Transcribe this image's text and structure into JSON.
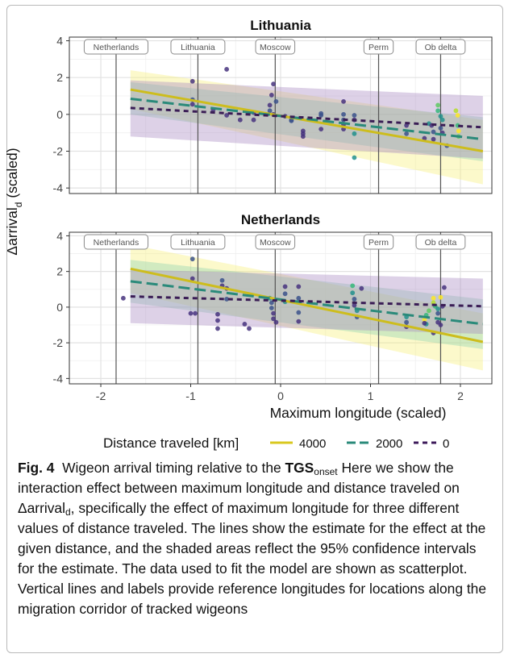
{
  "figure": {
    "panels": [
      {
        "title": "Lithuania"
      },
      {
        "title": "Netherlands"
      }
    ],
    "ylabel_main": "Δarrival",
    "ylabel_sub": "d",
    "ylabel_suffix": " (scaled)",
    "xlabel": "Maximum longitude (scaled)",
    "legend": {
      "title": "Distance traveled [km]",
      "entries": [
        {
          "label": "4000",
          "color": "#d9c81f",
          "dash": "solid"
        },
        {
          "label": "2000",
          "color": "#2a8a7a",
          "dash": "long"
        },
        {
          "label": "0",
          "color": "#3d1a5a",
          "dash": "short"
        }
      ]
    }
  },
  "caption": {
    "fig_label": "Fig. 4",
    "part1": "Wigeon arrival timing relative to the ",
    "tgs": "TGS",
    "tgs_sub": "onset",
    "part2": " Here we show the interaction effect between maximum longitude and distance traveled on Δarrival",
    "arr_sub": "d",
    "part3": ", specifically the effect of maximum longitude for three different values of distance traveled. The lines show the estimate for the effect at the given distance, and the shaded areas reflect the 95% confidence intervals for the estimate. The data used to fit the model are shown as scatterplot. Vertical lines and labels provide reference longitudes for locations along the migration corridor of tracked wigeons"
  },
  "chart_data": [
    {
      "type": "line",
      "title": "Lithuania",
      "xlabel": "Maximum longitude (scaled)",
      "ylabel": "Δarrival_d (scaled)",
      "xlim": [
        -2.35,
        2.35
      ],
      "ylim": [
        -4.3,
        4.2
      ],
      "xticks": [
        -2,
        -1,
        0,
        1,
        2
      ],
      "yticks": [
        -4,
        -2,
        0,
        2,
        4
      ],
      "reference_lines": [
        {
          "label": "Netherlands",
          "x": -1.83
        },
        {
          "label": "Lithuania",
          "x": -0.92
        },
        {
          "label": "Moscow",
          "x": -0.06
        },
        {
          "label": "Perm",
          "x": 1.09
        },
        {
          "label": "Ob delta",
          "x": 1.78
        }
      ],
      "series": [
        {
          "name": "4000",
          "x": [
            -1.67,
            2.25
          ],
          "y": [
            1.35,
            -2.0
          ],
          "ci_low": [
            0.3,
            -3.8
          ],
          "ci_high": [
            2.4,
            -0.3
          ]
        },
        {
          "name": "2000",
          "x": [
            -1.67,
            2.25
          ],
          "y": [
            0.85,
            -1.35
          ],
          "ci_low": [
            0.0,
            -2.55
          ],
          "ci_high": [
            1.75,
            -0.15
          ]
        },
        {
          "name": "0",
          "x": [
            -1.67,
            2.25
          ],
          "y": [
            0.35,
            -0.7
          ],
          "ci_low": [
            -1.2,
            -2.4
          ],
          "ci_high": [
            1.85,
            1.0
          ]
        }
      ],
      "points": [
        {
          "x": -0.98,
          "y": 1.8,
          "c": "#46327e"
        },
        {
          "x": -0.98,
          "y": 0.8,
          "c": "#3b528b"
        },
        {
          "x": -0.98,
          "y": 0.55,
          "c": "#46327e"
        },
        {
          "x": -0.6,
          "y": 2.45,
          "c": "#46327e"
        },
        {
          "x": -0.75,
          "y": 0.25,
          "c": "#46327e"
        },
        {
          "x": -0.6,
          "y": -0.05,
          "c": "#46327e"
        },
        {
          "x": -0.45,
          "y": -0.3,
          "c": "#46327e"
        },
        {
          "x": -0.3,
          "y": 0.1,
          "c": "#46327e"
        },
        {
          "x": -0.3,
          "y": -0.3,
          "c": "#46327e"
        },
        {
          "x": -0.12,
          "y": 0.5,
          "c": "#46327e"
        },
        {
          "x": -0.12,
          "y": 0.2,
          "c": "#3b528b"
        },
        {
          "x": -0.1,
          "y": 1.05,
          "c": "#46327e"
        },
        {
          "x": -0.08,
          "y": 0.0,
          "c": "#46327e"
        },
        {
          "x": -0.08,
          "y": 1.65,
          "c": "#46327e"
        },
        {
          "x": 0.05,
          "y": -0.1,
          "c": "#46327e"
        },
        {
          "x": 0.12,
          "y": -0.3,
          "c": "#3b528b"
        },
        {
          "x": 0.12,
          "y": -0.35,
          "c": "#3b528b"
        },
        {
          "x": -0.05,
          "y": 0.7,
          "c": "#3b528b"
        },
        {
          "x": 0.25,
          "y": -0.9,
          "c": "#46327e"
        },
        {
          "x": 0.25,
          "y": -1.05,
          "c": "#46327e"
        },
        {
          "x": 0.25,
          "y": -1.2,
          "c": "#46327e"
        },
        {
          "x": 0.45,
          "y": -0.8,
          "c": "#46327e"
        },
        {
          "x": 0.45,
          "y": -0.05,
          "c": "#3b528b"
        },
        {
          "x": 0.45,
          "y": 0.05,
          "c": "#3b528b"
        },
        {
          "x": 0.7,
          "y": 0.0,
          "c": "#3b528b"
        },
        {
          "x": 0.7,
          "y": -0.3,
          "c": "#3b528b"
        },
        {
          "x": 0.7,
          "y": -0.55,
          "c": "#46327e"
        },
        {
          "x": 0.7,
          "y": -0.8,
          "c": "#46327e"
        },
        {
          "x": 0.7,
          "y": 0.7,
          "c": "#46327e"
        },
        {
          "x": 0.82,
          "y": -1.05,
          "c": "#21918c"
        },
        {
          "x": 0.82,
          "y": -0.3,
          "c": "#46327e"
        },
        {
          "x": 0.82,
          "y": -2.35,
          "c": "#21918c"
        },
        {
          "x": 0.82,
          "y": -0.05,
          "c": "#3b528b"
        },
        {
          "x": 1.4,
          "y": -0.6,
          "c": "#46327e"
        },
        {
          "x": 1.4,
          "y": -1.05,
          "c": "#3b528b"
        },
        {
          "x": 1.65,
          "y": -0.5,
          "c": "#21918c"
        },
        {
          "x": 1.68,
          "y": -0.6,
          "c": "#46327e"
        },
        {
          "x": 1.7,
          "y": -0.95,
          "c": "#3b528b"
        },
        {
          "x": 1.7,
          "y": -1.35,
          "c": "#46327e"
        },
        {
          "x": 1.75,
          "y": 0.5,
          "c": "#5ec962"
        },
        {
          "x": 1.75,
          "y": 0.2,
          "c": "#35b779"
        },
        {
          "x": 1.78,
          "y": -0.1,
          "c": "#21918c"
        },
        {
          "x": 1.8,
          "y": -0.3,
          "c": "#21918c"
        },
        {
          "x": 1.78,
          "y": -0.75,
          "c": "#3b528b"
        },
        {
          "x": 1.8,
          "y": -1.0,
          "c": "#46327e"
        },
        {
          "x": 1.95,
          "y": 0.2,
          "c": "#b5de2b"
        },
        {
          "x": 1.97,
          "y": -0.05,
          "c": "#fde725"
        },
        {
          "x": 1.97,
          "y": -0.6,
          "c": "#35b779"
        },
        {
          "x": 1.98,
          "y": -0.9,
          "c": "#fde725"
        },
        {
          "x": 1.98,
          "y": -1.2,
          "c": "#5ec962"
        },
        {
          "x": 1.85,
          "y": -1.7,
          "c": "#3b528b"
        },
        {
          "x": 1.6,
          "y": -1.3,
          "c": "#46327e"
        }
      ]
    },
    {
      "type": "line",
      "title": "Netherlands",
      "xlabel": "Maximum longitude (scaled)",
      "ylabel": "Δarrival_d (scaled)",
      "xlim": [
        -2.35,
        2.35
      ],
      "ylim": [
        -4.3,
        4.2
      ],
      "xticks": [
        -2,
        -1,
        0,
        1,
        2
      ],
      "yticks": [
        -4,
        -2,
        0,
        2,
        4
      ],
      "reference_lines": [
        {
          "label": "Netherlands",
          "x": -1.83
        },
        {
          "label": "Lithuania",
          "x": -0.92
        },
        {
          "label": "Moscow",
          "x": -0.06
        },
        {
          "label": "Perm",
          "x": 1.09
        },
        {
          "label": "Ob delta",
          "x": 1.78
        }
      ],
      "series": [
        {
          "name": "4000",
          "x": [
            -1.67,
            2.25
          ],
          "y": [
            2.15,
            -1.95
          ],
          "ci_low": [
            0.8,
            -3.55
          ],
          "ci_high": [
            3.5,
            -0.35
          ]
        },
        {
          "name": "2000",
          "x": [
            -1.67,
            2.25
          ],
          "y": [
            1.45,
            -0.95
          ],
          "ci_low": [
            0.25,
            -2.35
          ],
          "ci_high": [
            2.65,
            0.45
          ]
        },
        {
          "name": "0",
          "x": [
            -1.67,
            2.25
          ],
          "y": [
            0.6,
            0.05
          ],
          "ci_low": [
            -0.9,
            -1.5
          ],
          "ci_high": [
            2.1,
            1.6
          ]
        }
      ],
      "points": [
        {
          "x": -1.75,
          "y": 0.5,
          "c": "#46327e"
        },
        {
          "x": -0.98,
          "y": 2.7,
          "c": "#3b528b"
        },
        {
          "x": -0.98,
          "y": 1.6,
          "c": "#46327e"
        },
        {
          "x": -0.95,
          "y": -0.35,
          "c": "#46327e"
        },
        {
          "x": -1.0,
          "y": -0.35,
          "c": "#46327e"
        },
        {
          "x": -0.65,
          "y": 1.5,
          "c": "#3b528b"
        },
        {
          "x": -0.65,
          "y": 1.2,
          "c": "#46327e"
        },
        {
          "x": -0.7,
          "y": -0.4,
          "c": "#46327e"
        },
        {
          "x": -0.7,
          "y": -0.75,
          "c": "#46327e"
        },
        {
          "x": -0.7,
          "y": -1.2,
          "c": "#46327e"
        },
        {
          "x": -0.6,
          "y": 1.05,
          "c": "#46327e"
        },
        {
          "x": -0.6,
          "y": 0.45,
          "c": "#3b528b"
        },
        {
          "x": -0.4,
          "y": -0.95,
          "c": "#46327e"
        },
        {
          "x": -0.35,
          "y": -1.2,
          "c": "#46327e"
        },
        {
          "x": -0.12,
          "y": 0.5,
          "c": "#21918c"
        },
        {
          "x": -0.1,
          "y": 0.25,
          "c": "#3b528b"
        },
        {
          "x": -0.1,
          "y": -0.05,
          "c": "#3b528b"
        },
        {
          "x": -0.08,
          "y": -0.35,
          "c": "#46327e"
        },
        {
          "x": -0.08,
          "y": -0.65,
          "c": "#46327e"
        },
        {
          "x": -0.05,
          "y": -0.85,
          "c": "#46327e"
        },
        {
          "x": 0.05,
          "y": 1.15,
          "c": "#46327e"
        },
        {
          "x": 0.05,
          "y": 0.75,
          "c": "#3b528b"
        },
        {
          "x": 0.05,
          "y": 0.3,
          "c": "#21918c"
        },
        {
          "x": 0.2,
          "y": 1.15,
          "c": "#46327e"
        },
        {
          "x": 0.2,
          "y": 0.5,
          "c": "#3b528b"
        },
        {
          "x": 0.2,
          "y": -0.3,
          "c": "#3b528b"
        },
        {
          "x": 0.2,
          "y": -0.8,
          "c": "#46327e"
        },
        {
          "x": 0.8,
          "y": 1.2,
          "c": "#35b779"
        },
        {
          "x": 0.8,
          "y": 0.8,
          "c": "#21918c"
        },
        {
          "x": 0.82,
          "y": 0.45,
          "c": "#3b528b"
        },
        {
          "x": 0.82,
          "y": 0.1,
          "c": "#46327e"
        },
        {
          "x": 0.85,
          "y": -0.2,
          "c": "#21918c"
        },
        {
          "x": 0.85,
          "y": -0.55,
          "c": "#3b528b"
        },
        {
          "x": 0.9,
          "y": 1.05,
          "c": "#46327e"
        },
        {
          "x": 1.4,
          "y": -0.55,
          "c": "#21918c"
        },
        {
          "x": 1.4,
          "y": -0.85,
          "c": "#3b528b"
        },
        {
          "x": 1.4,
          "y": -1.1,
          "c": "#46327e"
        },
        {
          "x": 1.6,
          "y": -0.7,
          "c": "#fde725"
        },
        {
          "x": 1.62,
          "y": -0.45,
          "c": "#35b779"
        },
        {
          "x": 1.62,
          "y": -0.95,
          "c": "#21918c"
        },
        {
          "x": 1.65,
          "y": -0.2,
          "c": "#5ec962"
        },
        {
          "x": 1.7,
          "y": 0.5,
          "c": "#fde725"
        },
        {
          "x": 1.7,
          "y": 0.25,
          "c": "#b5de2b"
        },
        {
          "x": 1.72,
          "y": 0.05,
          "c": "#35b779"
        },
        {
          "x": 1.75,
          "y": -0.1,
          "c": "#21918c"
        },
        {
          "x": 1.75,
          "y": -0.35,
          "c": "#3b528b"
        },
        {
          "x": 1.75,
          "y": -0.85,
          "c": "#46327e"
        },
        {
          "x": 1.78,
          "y": 0.55,
          "c": "#fde725"
        },
        {
          "x": 1.78,
          "y": -1.0,
          "c": "#46327e"
        },
        {
          "x": 1.7,
          "y": -1.45,
          "c": "#46327e"
        },
        {
          "x": 1.8,
          "y": 0.05,
          "c": "#46327e"
        },
        {
          "x": 1.82,
          "y": 1.1,
          "c": "#46327e"
        },
        {
          "x": 1.6,
          "y": -0.9,
          "c": "#46327e"
        }
      ]
    }
  ]
}
